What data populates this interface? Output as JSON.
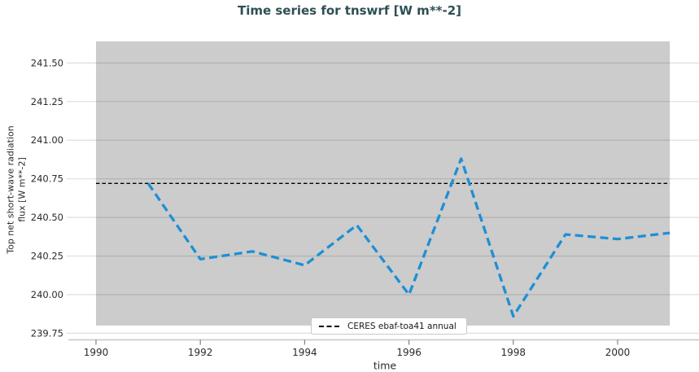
{
  "chart_data": {
    "type": "line",
    "title": "Time series for tnswrf [W m**-2]",
    "xlabel": "time",
    "ylabel": "Top net short-wave radiation flux [W m**-2]",
    "ylabel_display": "Top net short-wave radiation\nflux [W m**-2]",
    "grid": true,
    "legend_position": "lower center",
    "xlim": [
      1989.47,
      2001.56
    ],
    "ylim": [
      239.71,
      241.66
    ],
    "xticks": [
      1990,
      1992,
      1994,
      1996,
      1998,
      2000
    ],
    "yticks": [
      239.75,
      240.0,
      240.25,
      240.5,
      240.75,
      241.0,
      241.25,
      241.5
    ],
    "series": [
      {
        "name": "tnswrf",
        "style": "dashed",
        "color": "#1e8fd5",
        "x": [
          1991,
          1992,
          1993,
          1994,
          1995,
          1996,
          1997,
          1998,
          1999,
          2000,
          2001
        ],
        "values": [
          240.72,
          240.23,
          240.28,
          240.19,
          240.45,
          240.0,
          240.88,
          239.86,
          240.39,
          240.36,
          240.4
        ]
      }
    ],
    "reference_line": {
      "label": "CERES ebaf-toa41 annual",
      "value": 240.72,
      "color": "#000000",
      "style": "dashed",
      "x_start": 1990,
      "x_end": 2001
    },
    "shaded_band": {
      "x0": 1990,
      "x1": 2001,
      "y0": 239.8,
      "y1": 241.64,
      "color": "#cccccc"
    },
    "colors": {
      "title": "#2f4f54",
      "gridline": "rgba(0,0,0,0.13)",
      "spine": "#c6c6c6",
      "tick_mark": "#777777",
      "tick_text": "#2b2b2b"
    }
  }
}
